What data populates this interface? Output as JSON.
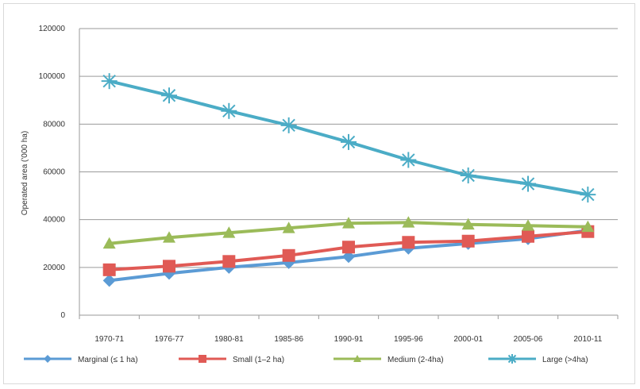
{
  "chart_data": {
    "type": "line",
    "title": "",
    "xlabel": "",
    "ylabel": "Operated area ('000 ha)",
    "ylim": [
      0,
      120000
    ],
    "yticks": [
      0,
      20000,
      40000,
      60000,
      80000,
      100000,
      120000
    ],
    "grid": true,
    "legend": "bottom",
    "categories": [
      "1970-71",
      "1976-77",
      "1980-81",
      "1985-86",
      "1990-91",
      "1995-96",
      "2000-01",
      "2005-06",
      "2010-11"
    ],
    "series": [
      {
        "name": "Marginal (≤ 1 ha)",
        "marker": "diamond",
        "color": "#5b9bd5",
        "values": [
          14500,
          17500,
          20000,
          22000,
          24500,
          28000,
          30000,
          32000,
          35500
        ]
      },
      {
        "name": "Small (1–2 ha)",
        "marker": "square",
        "color": "#e05a55",
        "values": [
          19000,
          20500,
          22500,
          25000,
          28500,
          30500,
          31000,
          33000,
          35000
        ]
      },
      {
        "name": "Medium (2-4ha)",
        "marker": "triangle",
        "color": "#9bbb59",
        "values": [
          30000,
          32500,
          34500,
          36500,
          38500,
          38800,
          38000,
          37500,
          37000
        ]
      },
      {
        "name": "Large (>4ha)",
        "marker": "star",
        "color": "#4bacc6",
        "values": [
          98000,
          92000,
          85500,
          79500,
          72500,
          65000,
          58500,
          55000,
          50500
        ]
      }
    ]
  }
}
